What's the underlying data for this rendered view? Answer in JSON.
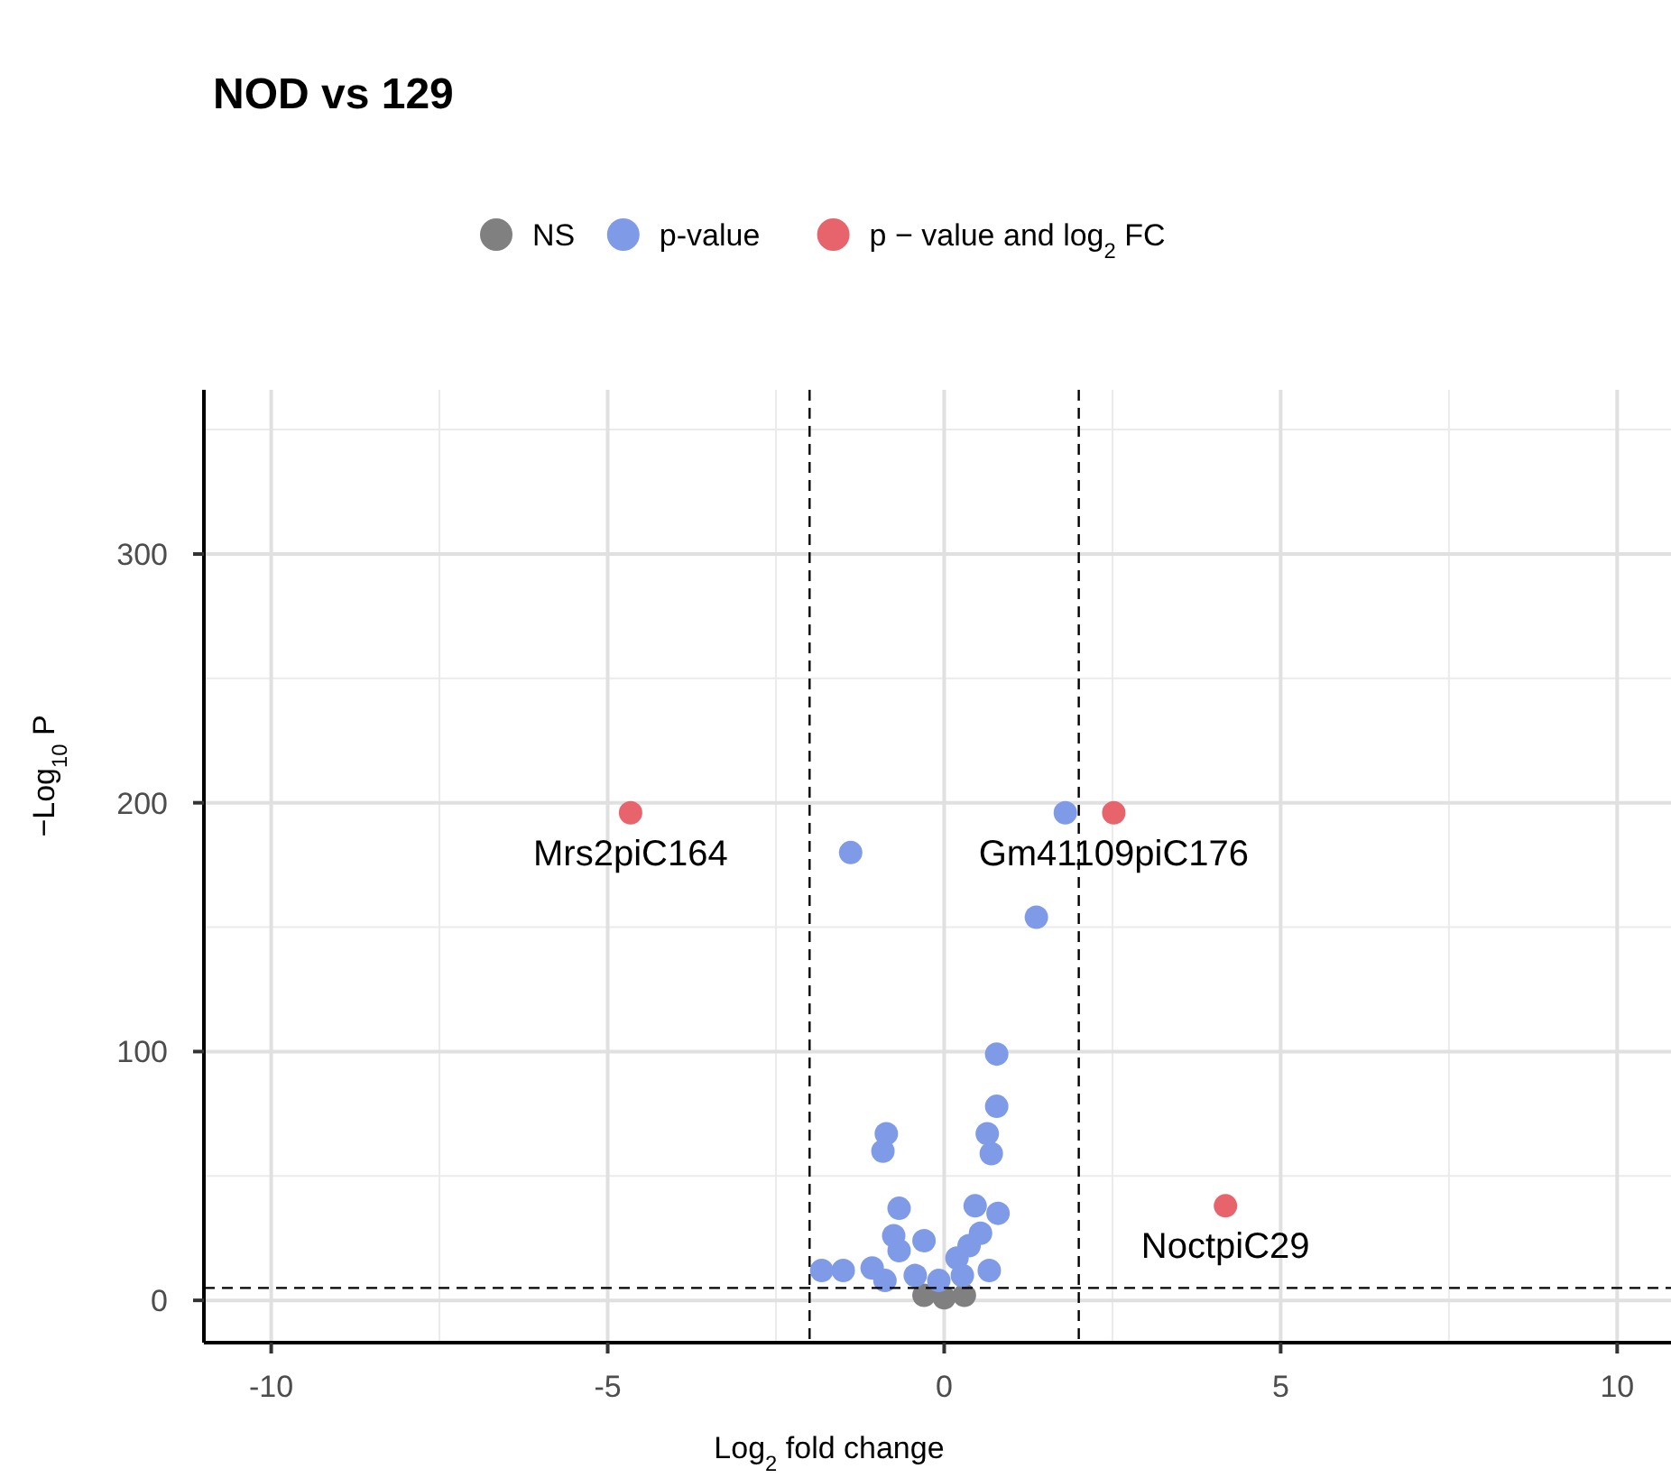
{
  "chart_data": {
    "type": "scatter",
    "title": "NOD vs 129",
    "xlabel": "Log$_{2}$ fold change",
    "ylabel": "−Log$_{10}$ P",
    "xlim": [
      -11,
      10.8
    ],
    "ylim": [
      -17,
      366
    ],
    "xticks": [
      -10,
      -5,
      0,
      5,
      10
    ],
    "yticks": [
      0,
      100,
      200,
      300
    ],
    "grid": true,
    "legend": "top",
    "marker": "circle",
    "ref_lines": [
      {
        "axis": "x",
        "value": -2,
        "line_style": "dashed"
      },
      {
        "axis": "x",
        "value": 2,
        "line_style": "dashed"
      },
      {
        "axis": "y",
        "value": 5,
        "line_style": "dashed"
      }
    ],
    "series": [
      {
        "name": "NS",
        "color": "#808080",
        "x": [
          -0.3,
          0,
          0.3
        ],
        "values": [
          2,
          1,
          2
        ]
      },
      {
        "name": "p-value",
        "color": "#7f9be8",
        "x": [
          1.8,
          -1.39,
          1.37,
          0.78,
          0.78,
          0.64,
          0.7,
          -0.86,
          -0.91,
          -0.67,
          0.46,
          0.8,
          -0.75,
          -0.3,
          -1.07,
          -0.67,
          0.54,
          0.37,
          0.19,
          -0.88,
          -0.43,
          0.27,
          -0.08,
          -1.5,
          -1.82,
          0.67
        ],
        "values": [
          196,
          180,
          154,
          99,
          78,
          67,
          59,
          67,
          60,
          37,
          38,
          35,
          26,
          24,
          13,
          20,
          27,
          22,
          17,
          8,
          10,
          10,
          8,
          12,
          12,
          12
        ]
      },
      {
        "name": "p − value and log$_{2}$ FC",
        "color": "#e8646c",
        "x": [
          -4.66,
          2.52,
          4.18
        ],
        "values": [
          196,
          196,
          38
        ]
      }
    ],
    "annotations": [
      {
        "text": "Mrs2piC164",
        "x": -4.66,
        "y": 196
      },
      {
        "text": "Gm41109piC176",
        "x": 2.52,
        "y": 196
      },
      {
        "text": "NoctpiC29",
        "x": 4.18,
        "y": 38
      }
    ]
  }
}
